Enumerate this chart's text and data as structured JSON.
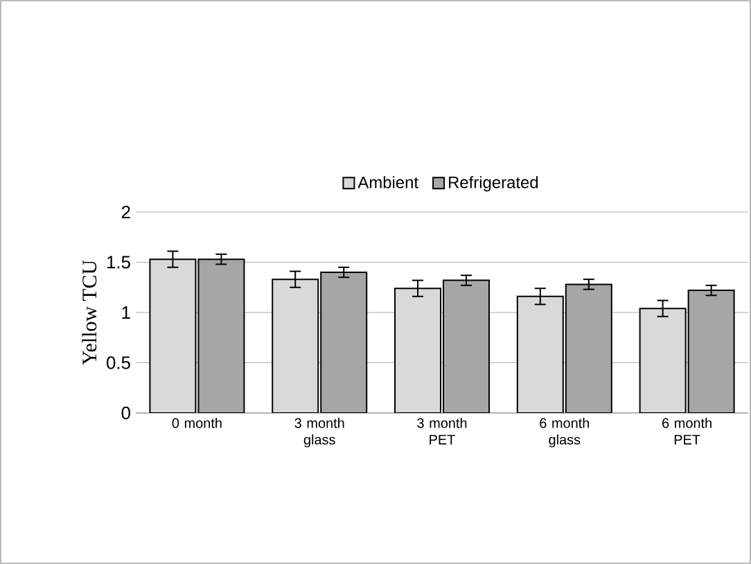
{
  "chart_data": {
    "type": "bar",
    "ylabel": "Yellow TCU",
    "categories": [
      "0 month",
      "3 month glass",
      "3 month PET",
      "6 month glass",
      "6 month PET"
    ],
    "series": [
      {
        "name": "Ambient",
        "color": "#d9d9d9",
        "values": [
          1.53,
          1.33,
          1.24,
          1.16,
          1.04
        ],
        "errors": [
          0.08,
          0.08,
          0.08,
          0.08,
          0.08
        ]
      },
      {
        "name": "Refrigerated",
        "color": "#a6a6a6",
        "values": [
          1.53,
          1.4,
          1.32,
          1.28,
          1.22
        ],
        "errors": [
          0.05,
          0.05,
          0.05,
          0.05,
          0.05
        ]
      }
    ],
    "ylim": [
      0,
      2
    ],
    "yticks": [
      0,
      0.5,
      1,
      1.5,
      2
    ],
    "grid": "y",
    "legend": "top"
  }
}
